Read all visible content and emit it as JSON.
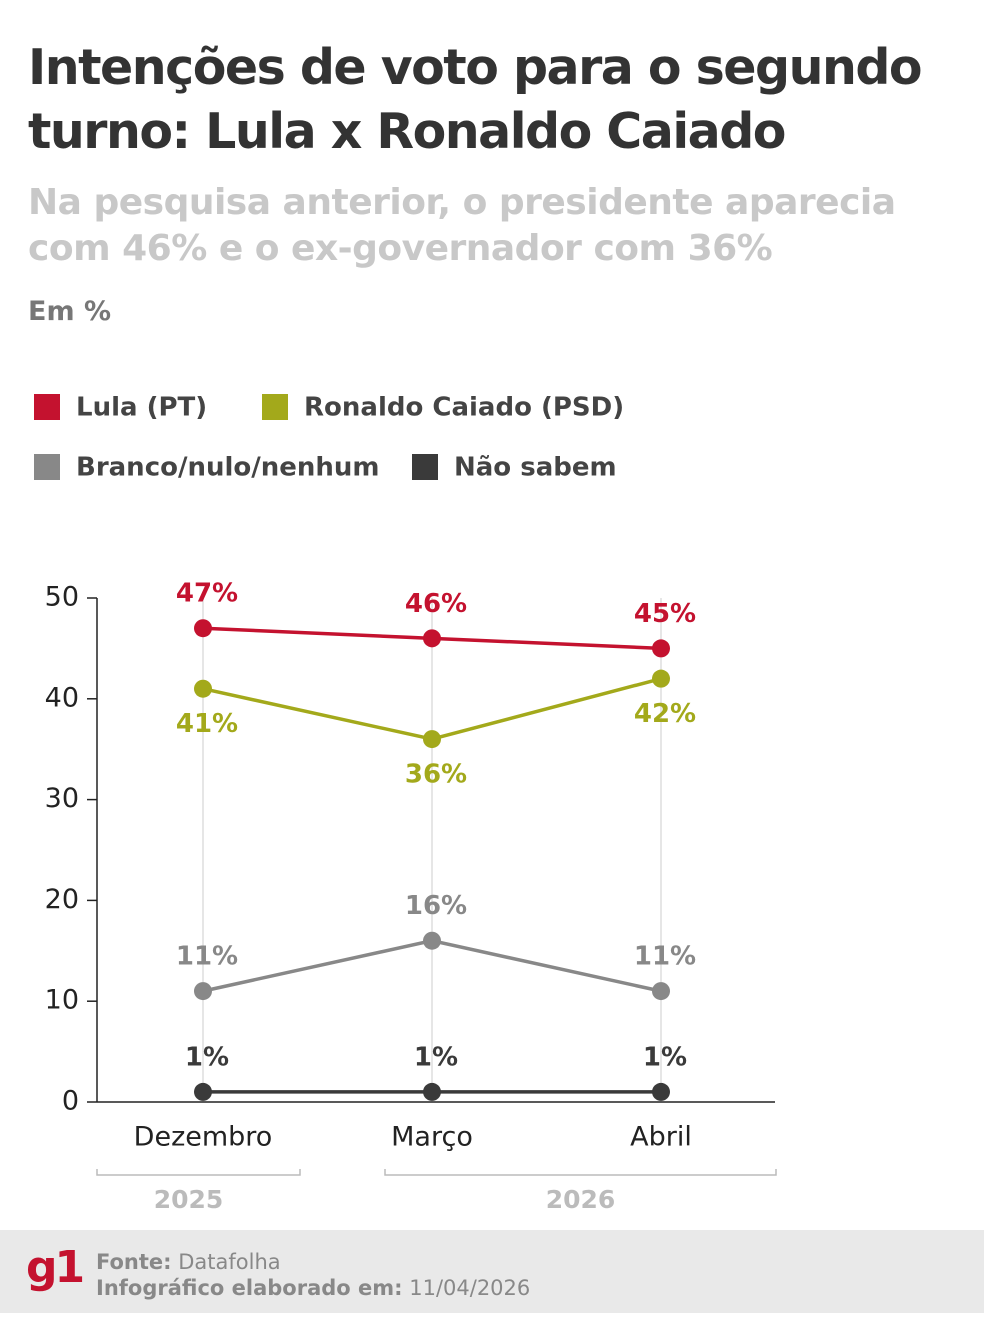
{
  "chart_data": {
    "type": "line",
    "title": "Intenções de voto para o segundo turno: Lula x Ronaldo Caiado",
    "subtitle": "Na pesquisa anterior, o presidente aparecia com 46% e o ex-governador com 36%",
    "unit_label": "Em %",
    "categories": [
      "Dezembro",
      "Março",
      "Abril"
    ],
    "year_groups": [
      "2025",
      "2026"
    ],
    "series": [
      {
        "name": "Lula  (PT)",
        "color": "#c4122f",
        "values": [
          47,
          46,
          45
        ],
        "value_labels": [
          "47%",
          "46%",
          "45%"
        ],
        "label_position": "above"
      },
      {
        "name": "Ronaldo Caiado (PSD)",
        "color": "#a3a91b",
        "values": [
          41,
          36,
          42
        ],
        "value_labels": [
          "41%",
          "36%",
          "42%"
        ],
        "label_position": "below"
      },
      {
        "name": "Branco/nulo/nenhum",
        "color": "#888888",
        "values": [
          11,
          16,
          11
        ],
        "value_labels": [
          "11%",
          "16%",
          "11%"
        ],
        "label_position": "above"
      },
      {
        "name": "Não sabem",
        "color": "#3a3a3a",
        "values": [
          1,
          1,
          1
        ],
        "value_labels": [
          "1%",
          "1%",
          "1%"
        ],
        "label_position": "above"
      }
    ],
    "ylim": [
      0,
      50
    ],
    "yticks": [
      0,
      10,
      20,
      30,
      40,
      50
    ],
    "grid": "x",
    "footer": {
      "source_label": "Fonte:",
      "source": "Datafolha",
      "date_label": "Infográfico elaborado em:",
      "date": "11/04/2026",
      "logo": "g1"
    }
  }
}
